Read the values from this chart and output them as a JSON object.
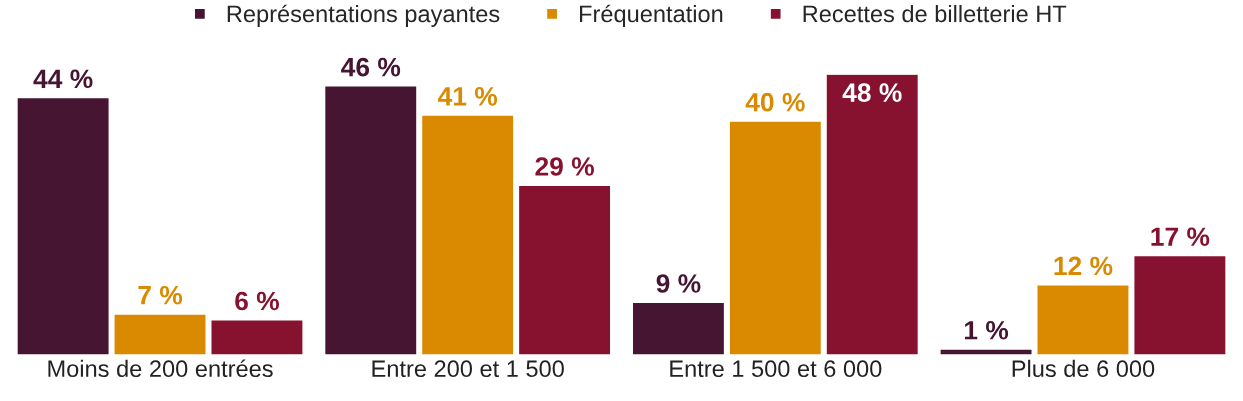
{
  "chart_data": {
    "type": "bar",
    "categories": [
      "Moins de 200 entrées",
      "Entre 200 et 1 500",
      "Entre 1 500 et 6 000",
      "Plus de 6 000"
    ],
    "series": [
      {
        "name": "Représentations payantes",
        "color": "#461532",
        "values": [
          44,
          46,
          9,
          1
        ],
        "value_labels": [
          "44 %",
          "46 %",
          "9 %",
          "1 %"
        ]
      },
      {
        "name": "Fréquentation",
        "color": "#d98a00",
        "values": [
          7,
          41,
          40,
          12
        ],
        "value_labels": [
          "7 %",
          "41 %",
          "40 %",
          "12 %"
        ]
      },
      {
        "name": "Recettes de billetterie HT",
        "color": "#861230",
        "values": [
          6,
          29,
          48,
          17
        ],
        "value_labels": [
          "6 %",
          "29 %",
          "48 %",
          "17 %"
        ]
      }
    ],
    "legend": "top",
    "grid": false,
    "tick_labels": "x"
  }
}
